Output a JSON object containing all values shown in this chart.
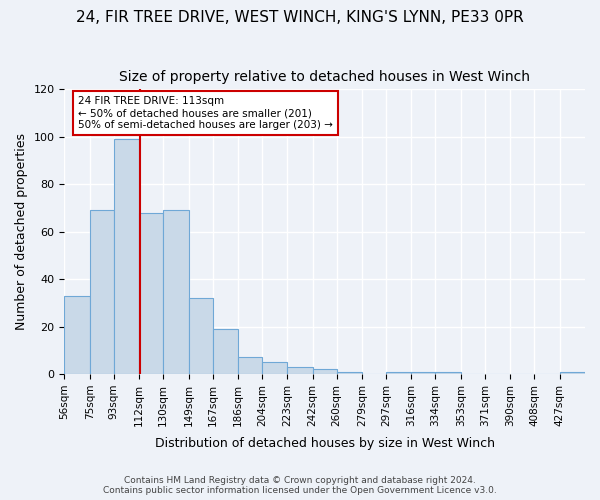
{
  "title1": "24, FIR TREE DRIVE, WEST WINCH, KING'S LYNN, PE33 0PR",
  "title2": "Size of property relative to detached houses in West Winch",
  "xlabel": "Distribution of detached houses by size in West Winch",
  "ylabel": "Number of detached properties",
  "bin_edges": [
    56,
    75,
    93,
    112,
    130,
    149,
    167,
    186,
    204,
    223,
    242,
    260,
    279,
    297,
    316,
    334,
    353,
    371,
    390,
    408,
    427,
    446
  ],
  "bar_heights": [
    33,
    69,
    99,
    68,
    69,
    32,
    19,
    7,
    5,
    3,
    2,
    1,
    0,
    1,
    1,
    1,
    0,
    0,
    0,
    0,
    1
  ],
  "bar_color": "#c9d9e8",
  "bar_edgecolor": "#6fa8d6",
  "property_size": 113,
  "vline_color": "#cc0000",
  "annotation_line1": "24 FIR TREE DRIVE: 113sqm",
  "annotation_line2": "← 50% of detached houses are smaller (201)",
  "annotation_line3": "50% of semi-detached houses are larger (203) →",
  "annotation_box_edgecolor": "#cc0000",
  "annotation_box_facecolor": "#ffffff",
  "ylim": [
    0,
    120
  ],
  "yticks": [
    0,
    20,
    40,
    60,
    80,
    100,
    120
  ],
  "xtick_labels": [
    "56sqm",
    "75sqm",
    "93sqm",
    "112sqm",
    "130sqm",
    "149sqm",
    "167sqm",
    "186sqm",
    "204sqm",
    "223sqm",
    "242sqm",
    "260sqm",
    "279sqm",
    "297sqm",
    "316sqm",
    "334sqm",
    "353sqm",
    "371sqm",
    "390sqm",
    "408sqm",
    "427sqm"
  ],
  "footer1": "Contains HM Land Registry data © Crown copyright and database right 2024.",
  "footer2": "Contains public sector information licensed under the Open Government Licence v3.0.",
  "bg_color": "#eef2f8",
  "grid_color": "#ffffff",
  "title_fontsize": 11,
  "subtitle_fontsize": 10,
  "tick_fontsize": 8,
  "label_fontsize": 9
}
